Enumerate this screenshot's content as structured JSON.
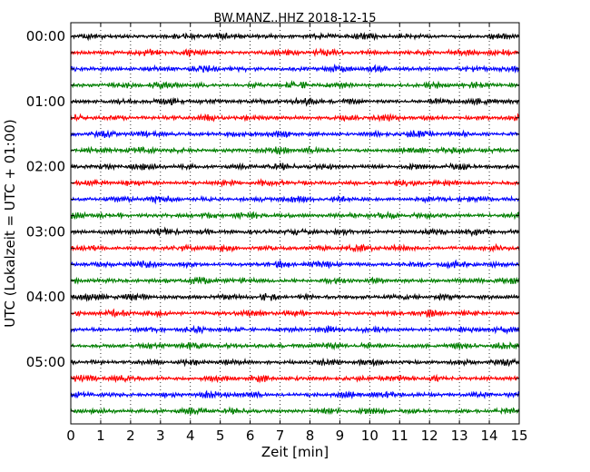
{
  "chart_data": {
    "type": "line",
    "title": "BW.MANZ..HHZ 2018-12-15",
    "xlabel": "Zeit  [min]",
    "ylabel": "UTC (Lokalzeit = UTC + 01:00)",
    "xlim": [
      0,
      15
    ],
    "x_ticks": [
      "0",
      "1",
      "2",
      "3",
      "4",
      "5",
      "6",
      "7",
      "8",
      "9",
      "10",
      "11",
      "12",
      "13",
      "14",
      "15"
    ],
    "y_tick_labels": [
      "00:00",
      "01:00",
      "02:00",
      "03:00",
      "04:00",
      "05:00"
    ],
    "trace_interval_min": 15,
    "trace_count": 24,
    "trace_colors": [
      "#000000",
      "#ff0000",
      "#0000ff",
      "#007f00"
    ],
    "grid": "vertical dotted lines at each minute",
    "series": [
      {
        "start": "00:00"
      },
      {
        "start": "00:15"
      },
      {
        "start": "00:30"
      },
      {
        "start": "00:45"
      },
      {
        "start": "01:00"
      },
      {
        "start": "01:15"
      },
      {
        "start": "01:30"
      },
      {
        "start": "01:45"
      },
      {
        "start": "02:00"
      },
      {
        "start": "02:15"
      },
      {
        "start": "02:30"
      },
      {
        "start": "02:45"
      },
      {
        "start": "03:00"
      },
      {
        "start": "03:15"
      },
      {
        "start": "03:30"
      },
      {
        "start": "03:45"
      },
      {
        "start": "04:00"
      },
      {
        "start": "04:15"
      },
      {
        "start": "04:30"
      },
      {
        "start": "04:45"
      },
      {
        "start": "05:00"
      },
      {
        "start": "05:15"
      },
      {
        "start": "05:30"
      },
      {
        "start": "05:45"
      }
    ]
  }
}
